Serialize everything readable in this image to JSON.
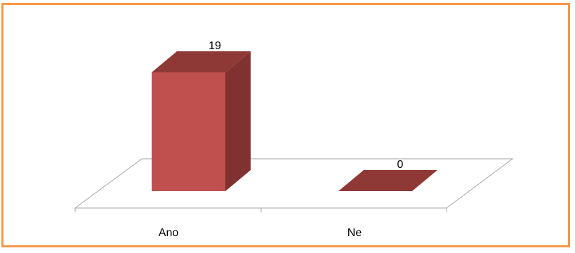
{
  "chart_data": {
    "type": "bar",
    "style": "3d-column",
    "categories": [
      "Ano",
      "Ne"
    ],
    "values": [
      19,
      0
    ],
    "data_labels": [
      "19",
      "0"
    ],
    "title": "",
    "xlabel": "",
    "ylabel": "",
    "ylim": [
      0,
      19
    ],
    "grid": false,
    "legend": "none",
    "colors": {
      "bar_front": "#c0504d",
      "bar_side": "#7f3230",
      "bar_top": "#8e3936",
      "floor_line": "#a6a6a6",
      "frame_border": "#f79646"
    }
  }
}
